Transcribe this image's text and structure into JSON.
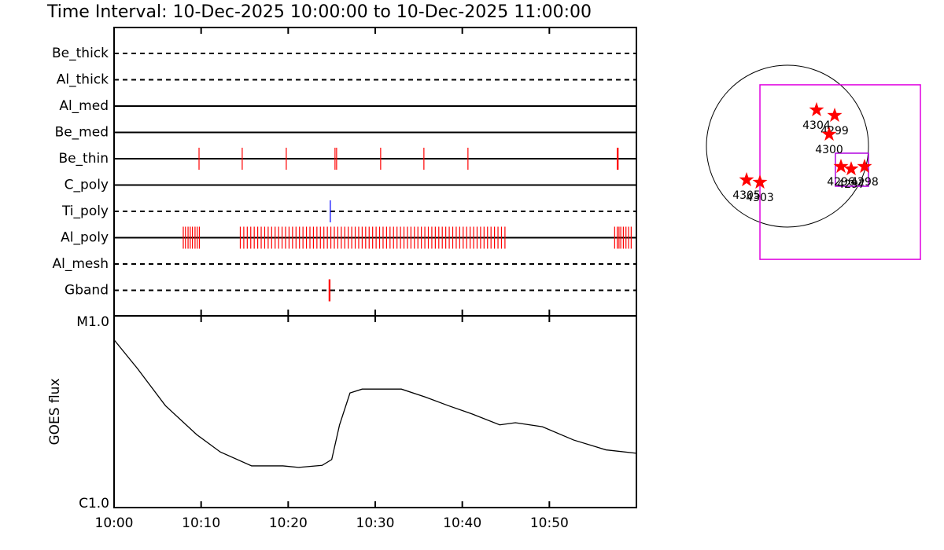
{
  "chart_data": [
    {
      "type": "timeline",
      "title": "Time Interval: 10-Dec-2025 10:00:00 to 10-Dec-2025 11:00:00",
      "filters": [
        {
          "name": "Be_thick",
          "dashed": true,
          "color": "#ff0000",
          "events": []
        },
        {
          "name": "Al_thick",
          "dashed": true,
          "color": "#ff0000",
          "events": []
        },
        {
          "name": "Al_med",
          "dashed": false,
          "color": "#ff0000",
          "events": []
        },
        {
          "name": "Be_med",
          "dashed": false,
          "color": "#ff0000",
          "events": []
        },
        {
          "name": "Be_thin",
          "dashed": false,
          "color": "#ff0000",
          "events": [
            9.76,
            14.72,
            19.78,
            25.38,
            25.56,
            30.62,
            35.59,
            40.65,
            57.8,
            57.9
          ]
        },
        {
          "name": "C_poly",
          "dashed": false,
          "color": "#ff0000",
          "events": []
        },
        {
          "name": "Ti_poly",
          "dashed": true,
          "color": "#0000ff",
          "events": [
            24.84
          ]
        },
        {
          "name": "Al_poly",
          "dashed": false,
          "color": "#ff0000",
          "events": [
            7.95,
            8.2,
            8.5,
            8.75,
            9.0,
            9.3,
            9.55,
            9.8,
            14.5,
            14.9,
            15.3,
            15.7,
            16.1,
            16.5,
            16.9,
            17.3,
            17.7,
            18.1,
            18.5,
            18.9,
            19.3,
            19.7,
            20.1,
            20.5,
            20.9,
            21.3,
            21.7,
            22.1,
            22.5,
            22.9,
            23.3,
            23.7,
            24.1,
            24.5,
            24.9,
            25.3,
            25.7,
            26.1,
            26.5,
            26.9,
            27.3,
            27.7,
            28.1,
            28.5,
            28.9,
            29.3,
            29.7,
            30.1,
            30.5,
            30.9,
            31.3,
            31.7,
            32.1,
            32.5,
            32.9,
            33.3,
            33.7,
            34.1,
            34.5,
            34.9,
            35.3,
            35.7,
            36.1,
            36.5,
            36.9,
            37.3,
            37.7,
            38.1,
            38.5,
            38.9,
            39.3,
            39.7,
            40.1,
            40.5,
            40.9,
            41.3,
            41.7,
            42.1,
            42.5,
            42.9,
            43.3,
            43.7,
            44.1,
            44.5,
            44.9,
            57.5,
            57.8,
            58.0,
            58.2,
            58.5,
            58.8,
            59.1,
            59.4
          ]
        },
        {
          "name": "Al_mesh",
          "dashed": true,
          "color": "#ff0000",
          "events": []
        },
        {
          "name": "Gband",
          "dashed": true,
          "color": "#ff0000",
          "events": [
            24.7,
            24.8
          ]
        }
      ]
    },
    {
      "type": "line",
      "ylabel": "GOES flux",
      "log": true,
      "color": "#000000",
      "xlim": [
        0,
        60
      ],
      "xticks": [
        {
          "value": 0,
          "label": "10:00"
        },
        {
          "value": 10,
          "label": "10:10"
        },
        {
          "value": 20,
          "label": "10:20"
        },
        {
          "value": 30,
          "label": "10:30"
        },
        {
          "value": 40,
          "label": "10:40"
        },
        {
          "value": 50,
          "label": "10:50"
        }
      ],
      "ylim": [
        1e-06,
        1e-05
      ],
      "yticks": [
        {
          "value": 1e-06,
          "label": "C1.0"
        },
        {
          "value": 1e-05,
          "label": "M1.0"
        }
      ],
      "x": [
        0,
        2.7,
        5.9,
        9.5,
        12.2,
        15.8,
        19.4,
        21.2,
        23.9,
        25.0,
        25.9,
        27.1,
        28.5,
        33.0,
        35.7,
        38.4,
        41.1,
        44.3,
        46.1,
        49.2,
        52.8,
        56.5,
        60
      ],
      "values": [
        7.5e-06,
        5.3e-06,
        3.4e-06,
        2.4e-06,
        1.95e-06,
        1.65e-06,
        1.65e-06,
        1.62e-06,
        1.66e-06,
        1.78e-06,
        2.7e-06,
        3.96e-06,
        4.15e-06,
        4.15e-06,
        3.78e-06,
        3.4e-06,
        3.08e-06,
        2.7e-06,
        2.77e-06,
        2.64e-06,
        2.25e-06,
        2e-06,
        1.92e-06
      ]
    },
    {
      "type": "map",
      "radius": 975,
      "star_color": "#ff0000",
      "fov": [
        {
          "xlim": [
            -331,
            1600
          ],
          "ylim": [
            -1364,
            739
          ],
          "color": "#e000e0"
        },
        {
          "xlim": [
            577,
            975
          ],
          "ylim": [
            -483,
            -85
          ],
          "color": "#b000e0"
        }
      ],
      "stars": [
        {
          "label": "4304",
          "x": 350,
          "y": 436
        },
        {
          "label": "4299",
          "x": 568,
          "y": 369
        },
        {
          "label": "4300",
          "x": 502,
          "y": 142
        },
        {
          "label": "4296",
          "x": 644,
          "y": -246
        },
        {
          "label": "4297",
          "x": 767,
          "y": -275
        },
        {
          "label": "4298",
          "x": 928,
          "y": -246
        },
        {
          "label": "4305",
          "x": -492,
          "y": -407
        },
        {
          "label": "4303",
          "x": -331,
          "y": -436
        }
      ]
    }
  ]
}
